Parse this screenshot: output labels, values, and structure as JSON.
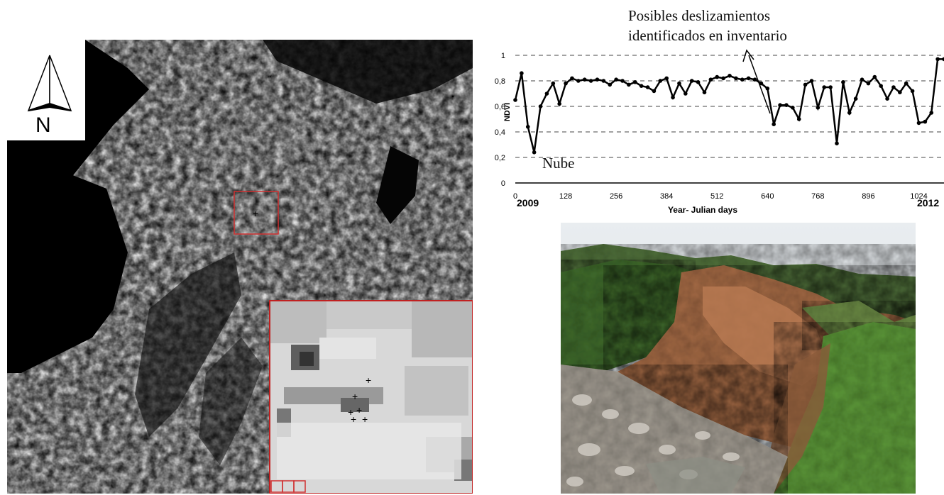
{
  "map": {
    "north_label": "N"
  },
  "chart": {
    "annotation_top": [
      "Posibles deslizamientos",
      "identificados en inventario"
    ],
    "annotation_bottom": "Nube",
    "year_start": "2009",
    "year_end": "2012",
    "colors": {
      "line": "#000000",
      "grid": "#444444",
      "map_box": "#d03030"
    }
  },
  "chart_data": {
    "type": "line",
    "title": "",
    "xlabel": "Year- Julian days",
    "ylabel": "NDVI",
    "xlim": [
      0,
      1088
    ],
    "ylim": [
      0,
      1
    ],
    "xticks": [
      0,
      128,
      256,
      384,
      512,
      640,
      768,
      896,
      1024
    ],
    "yticks": [
      "0",
      "0,2",
      "0,4",
      "0,6",
      "0,8",
      "1"
    ],
    "ytick_values": [
      0,
      0.2,
      0.4,
      0.6,
      0.8,
      1
    ],
    "grid": "horizontal dashed",
    "series": [
      {
        "x": [
          0,
          16,
          32,
          48,
          64,
          80,
          96,
          112,
          128,
          144,
          160,
          176,
          192,
          208,
          224,
          240,
          256,
          272,
          288,
          304,
          320,
          336,
          352,
          368,
          384,
          400,
          416,
          432,
          448,
          464,
          480,
          496,
          512,
          528,
          544,
          560,
          576,
          592,
          608,
          624,
          640,
          656,
          672,
          688,
          704,
          720,
          736,
          752,
          768,
          784,
          800,
          816,
          832,
          848,
          864,
          880,
          896,
          912,
          928,
          944,
          960,
          976,
          992,
          1008,
          1024,
          1040,
          1056,
          1072,
          1088
        ],
        "y": [
          0.65,
          0.86,
          0.44,
          0.24,
          0.6,
          0.7,
          0.78,
          0.62,
          0.78,
          0.82,
          0.8,
          0.81,
          0.8,
          0.81,
          0.8,
          0.77,
          0.81,
          0.8,
          0.77,
          0.79,
          0.76,
          0.75,
          0.72,
          0.8,
          0.82,
          0.67,
          0.78,
          0.7,
          0.8,
          0.79,
          0.71,
          0.81,
          0.83,
          0.82,
          0.84,
          0.82,
          0.81,
          0.82,
          0.81,
          0.78,
          0.74,
          0.46,
          0.61,
          0.61,
          0.59,
          0.5,
          0.77,
          0.8,
          0.59,
          0.75,
          0.75,
          0.31,
          0.79,
          0.55,
          0.66,
          0.81,
          0.78,
          0.83,
          0.76,
          0.66,
          0.75,
          0.71,
          0.78,
          0.72,
          0.47,
          0.48,
          0.55,
          0.97,
          0.97
        ]
      }
    ]
  }
}
